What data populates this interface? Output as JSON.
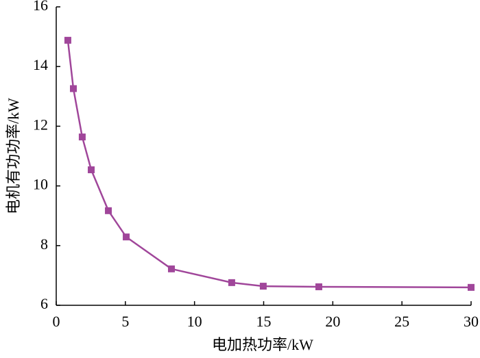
{
  "chart_data": {
    "type": "line",
    "xlabel": "电加热功率/kW",
    "ylabel": "电机有功功率/kW",
    "x": [
      0.84,
      1.24,
      1.88,
      2.53,
      3.77,
      5.06,
      8.33,
      12.69,
      14.97,
      18.99,
      30
    ],
    "series": [
      {
        "color": "#a0469a",
        "values": [
          14.88,
          13.26,
          11.64,
          10.54,
          9.17,
          8.29,
          7.22,
          6.76,
          6.64,
          6.62,
          6.6
        ]
      }
    ],
    "xlim": [
      0,
      30
    ],
    "xticks": [
      0,
      5,
      10,
      15,
      20,
      25,
      30
    ],
    "ylim": [
      6,
      16
    ],
    "yticks": [
      6,
      8,
      10,
      12,
      14,
      16
    ],
    "grid": false
  }
}
